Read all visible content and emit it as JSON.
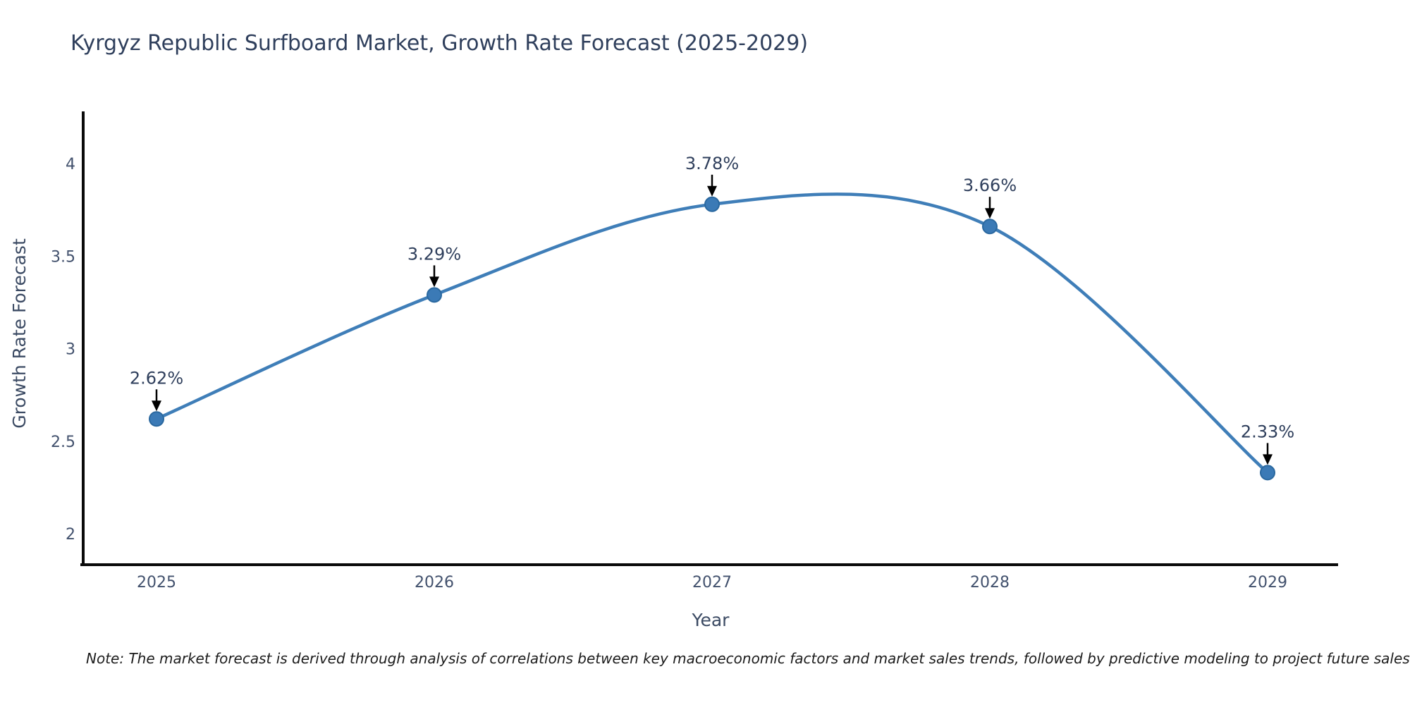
{
  "page": {
    "note": "Note: The market forecast is derived through analysis of correlations between key macroeconomic factors and market sales trends, followed by predictive modeling to project future sales"
  },
  "chart_data": {
    "type": "line",
    "title": "Kyrgyz Republic Surfboard Market, Growth Rate Forecast (2025-2029)",
    "xlabel": "Year",
    "ylabel": "Growth Rate Forecast",
    "x": [
      2025,
      2026,
      2027,
      2028,
      2029
    ],
    "series": [
      {
        "name": "Growth Rate Forecast",
        "values": [
          2.62,
          3.29,
          3.78,
          3.66,
          2.33
        ],
        "point_labels": [
          "2.62%",
          "3.29%",
          "3.78%",
          "3.66%",
          "2.33%"
        ]
      }
    ],
    "y_ticks": [
      "2",
      "2.5",
      "3",
      "3.5",
      "4"
    ],
    "y_tick_values": [
      2,
      2.5,
      3,
      3.5,
      4
    ],
    "ylim": [
      1.83,
      4.27
    ],
    "line_shape": "spline",
    "grid": false,
    "legend": false,
    "annotation_arrows": true,
    "colors": {
      "line": "#3f7eb8",
      "marker_fill": "#3b7ab6",
      "marker_edge": "#2a689f",
      "arrow": "#000000",
      "title_text": "#2f3f5c",
      "annotation_text": "#2f3f5c",
      "tick_text": "#42516d",
      "axis_title_text": "#3b4a63",
      "note_text": "#1c1c1c",
      "axis_line": "#0a0a0a",
      "background": "#ffffff"
    }
  }
}
